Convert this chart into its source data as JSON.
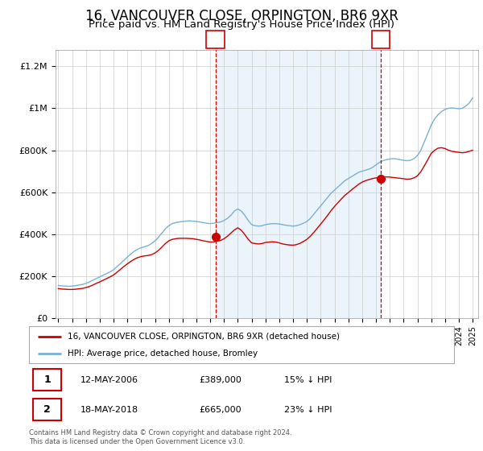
{
  "title": "16, VANCOUVER CLOSE, ORPINGTON, BR6 9XR",
  "subtitle": "Price paid vs. HM Land Registry's House Price Index (HPI)",
  "title_fontsize": 12,
  "subtitle_fontsize": 9.5,
  "ylabel_ticks": [
    "£0",
    "£200K",
    "£400K",
    "£600K",
    "£800K",
    "£1M",
    "£1.2M"
  ],
  "ytick_values": [
    0,
    200000,
    400000,
    600000,
    800000,
    1000000,
    1200000
  ],
  "ylim": [
    0,
    1280000
  ],
  "xlim_start": 1994.8,
  "xlim_end": 2025.4,
  "line1_color": "#cc0000",
  "line2_color": "#7ab0d4",
  "line1_label": "16, VANCOUVER CLOSE, ORPINGTON, BR6 9XR (detached house)",
  "line2_label": "HPI: Average price, detached house, Bromley",
  "transaction1_x": 2006.37,
  "transaction1_y": 389000,
  "transaction2_x": 2018.37,
  "transaction2_y": 665000,
  "shade_color": "#ddeeff",
  "transaction1_date": "12-MAY-2006",
  "transaction1_price": "£389,000",
  "transaction1_hpi": "15% ↓ HPI",
  "transaction2_date": "18-MAY-2018",
  "transaction2_price": "£665,000",
  "transaction2_hpi": "23% ↓ HPI",
  "footer": "Contains HM Land Registry data © Crown copyright and database right 2024.\nThis data is licensed under the Open Government Licence v3.0.",
  "bg_color": "#ffffff",
  "grid_color": "#cccccc",
  "years_hpi": [
    1995.0,
    1995.25,
    1995.5,
    1995.75,
    1996.0,
    1996.25,
    1996.5,
    1996.75,
    1997.0,
    1997.25,
    1997.5,
    1997.75,
    1998.0,
    1998.25,
    1998.5,
    1998.75,
    1999.0,
    1999.25,
    1999.5,
    1999.75,
    2000.0,
    2000.25,
    2000.5,
    2000.75,
    2001.0,
    2001.25,
    2001.5,
    2001.75,
    2002.0,
    2002.25,
    2002.5,
    2002.75,
    2003.0,
    2003.25,
    2003.5,
    2003.75,
    2004.0,
    2004.25,
    2004.5,
    2004.75,
    2005.0,
    2005.25,
    2005.5,
    2005.75,
    2006.0,
    2006.25,
    2006.5,
    2006.75,
    2007.0,
    2007.25,
    2007.5,
    2007.75,
    2008.0,
    2008.25,
    2008.5,
    2008.75,
    2009.0,
    2009.25,
    2009.5,
    2009.75,
    2010.0,
    2010.25,
    2010.5,
    2010.75,
    2011.0,
    2011.25,
    2011.5,
    2011.75,
    2012.0,
    2012.25,
    2012.5,
    2012.75,
    2013.0,
    2013.25,
    2013.5,
    2013.75,
    2014.0,
    2014.25,
    2014.5,
    2014.75,
    2015.0,
    2015.25,
    2015.5,
    2015.75,
    2016.0,
    2016.25,
    2016.5,
    2016.75,
    2017.0,
    2017.25,
    2017.5,
    2017.75,
    2018.0,
    2018.25,
    2018.5,
    2018.75,
    2019.0,
    2019.25,
    2019.5,
    2019.75,
    2020.0,
    2020.25,
    2020.5,
    2020.75,
    2021.0,
    2021.25,
    2021.5,
    2021.75,
    2022.0,
    2022.25,
    2022.5,
    2022.75,
    2023.0,
    2023.25,
    2023.5,
    2023.75,
    2024.0,
    2024.25,
    2024.5,
    2024.75,
    2025.0
  ],
  "hpi_values": [
    155000,
    153000,
    152000,
    151000,
    152000,
    154000,
    157000,
    160000,
    165000,
    172000,
    180000,
    188000,
    196000,
    204000,
    212000,
    220000,
    230000,
    245000,
    260000,
    275000,
    290000,
    305000,
    318000,
    328000,
    335000,
    340000,
    345000,
    355000,
    368000,
    385000,
    405000,
    425000,
    440000,
    450000,
    455000,
    458000,
    460000,
    462000,
    463000,
    462000,
    460000,
    458000,
    455000,
    452000,
    450000,
    452000,
    455000,
    458000,
    465000,
    475000,
    490000,
    510000,
    520000,
    510000,
    490000,
    465000,
    445000,
    440000,
    438000,
    440000,
    445000,
    448000,
    450000,
    450000,
    448000,
    445000,
    442000,
    440000,
    438000,
    440000,
    445000,
    452000,
    460000,
    475000,
    495000,
    515000,
    535000,
    555000,
    575000,
    595000,
    610000,
    625000,
    640000,
    655000,
    665000,
    675000,
    685000,
    695000,
    700000,
    705000,
    710000,
    718000,
    730000,
    742000,
    750000,
    755000,
    758000,
    760000,
    758000,
    755000,
    752000,
    750000,
    752000,
    760000,
    775000,
    800000,
    840000,
    880000,
    920000,
    950000,
    970000,
    985000,
    995000,
    1000000,
    1002000,
    1000000,
    998000,
    1000000,
    1010000,
    1025000,
    1050000
  ],
  "red_values": [
    140000,
    138000,
    137000,
    136000,
    136000,
    137000,
    139000,
    141000,
    145000,
    150000,
    157000,
    165000,
    172000,
    180000,
    188000,
    196000,
    205000,
    218000,
    232000,
    246000,
    258000,
    270000,
    280000,
    288000,
    293000,
    296000,
    298000,
    302000,
    310000,
    322000,
    338000,
    355000,
    368000,
    375000,
    378000,
    380000,
    380000,
    380000,
    379000,
    378000,
    375000,
    372000,
    368000,
    365000,
    362000,
    363000,
    366000,
    370000,
    378000,
    390000,
    405000,
    420000,
    430000,
    418000,
    398000,
    375000,
    358000,
    355000,
    353000,
    355000,
    360000,
    362000,
    363000,
    362000,
    358000,
    353000,
    350000,
    348000,
    347000,
    350000,
    356000,
    365000,
    375000,
    390000,
    408000,
    428000,
    448000,
    468000,
    490000,
    512000,
    532000,
    550000,
    568000,
    585000,
    598000,
    612000,
    625000,
    638000,
    648000,
    655000,
    660000,
    665000,
    668000,
    670000,
    672000,
    673000,
    672000,
    670000,
    668000,
    666000,
    664000,
    662000,
    663000,
    668000,
    678000,
    698000,
    725000,
    755000,
    785000,
    800000,
    810000,
    812000,
    808000,
    800000,
    795000,
    792000,
    790000,
    788000,
    790000,
    795000,
    800000
  ]
}
